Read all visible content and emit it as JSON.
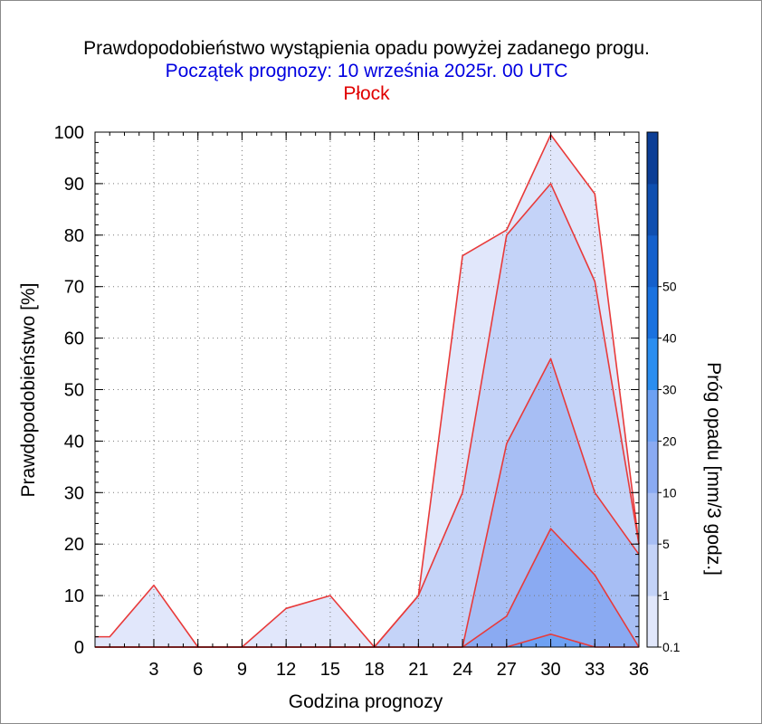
{
  "header": {
    "title": "Prawdopodobieństwo wystąpienia opadu powyżej zadanego progu.",
    "subtitle": "Początek prognozy: 10 września 2025r. 00 UTC",
    "station": "Płock"
  },
  "chart_data": {
    "type": "area",
    "title": "Prawdopodobieństwo wystąpienia opadu powyżej zadanego progu.",
    "subtitle": "Początek prognozy: 10 września 2025r. 00 UTC",
    "station": "Płock",
    "xlabel": "Godzina prognozy",
    "ylabel": "Prawdopodobieństwo [%]",
    "colorbar_label": "Próg opadu [mm/3 godz.]",
    "xlim": [
      -1,
      36
    ],
    "ylim": [
      0,
      100
    ],
    "xticks": [
      3,
      6,
      9,
      12,
      15,
      18,
      21,
      24,
      27,
      30,
      33,
      36
    ],
    "yticks": [
      0,
      10,
      20,
      30,
      40,
      50,
      60,
      70,
      80,
      90,
      100
    ],
    "grid": true,
    "x": [
      -1,
      0,
      3,
      6,
      9,
      12,
      15,
      18,
      21,
      24,
      27,
      30,
      33,
      36
    ],
    "series": [
      {
        "name": "0.1",
        "color": "#e1e7fb",
        "values": [
          2,
          2,
          12,
          0,
          0,
          7.5,
          10,
          0,
          10,
          76,
          81,
          99.5,
          88,
          20
        ]
      },
      {
        "name": "1",
        "color": "#c4d3f8",
        "values": [
          0,
          0,
          0,
          0,
          0,
          0,
          0,
          0,
          10,
          30,
          80,
          90,
          71,
          20
        ]
      },
      {
        "name": "5",
        "color": "#a7bef4",
        "values": [
          0,
          0,
          0,
          0,
          0,
          0,
          0,
          0,
          0,
          0,
          39.5,
          56,
          30,
          18
        ]
      },
      {
        "name": "10",
        "color": "#8aaaf2",
        "values": [
          0,
          0,
          0,
          0,
          0,
          0,
          0,
          0,
          0,
          0,
          6,
          23,
          14,
          0
        ]
      },
      {
        "name": "20",
        "color": "#6da1f3",
        "values": [
          0,
          0,
          0,
          0,
          0,
          0,
          0,
          0,
          0,
          0,
          0,
          2.5,
          0,
          0
        ]
      }
    ],
    "colorbar": {
      "labels": [
        "0.1",
        "1",
        "5",
        "10",
        "20",
        "30",
        "40",
        "50"
      ],
      "colors": [
        "#e1e7fb",
        "#c4d3f8",
        "#a7bef4",
        "#8aaaf2",
        "#6da1f3",
        "#2b8ef0",
        "#1a72e0",
        "#1460cc",
        "#0f4fb0",
        "#0c3e96"
      ]
    },
    "outline_color": "#e83a3a"
  }
}
